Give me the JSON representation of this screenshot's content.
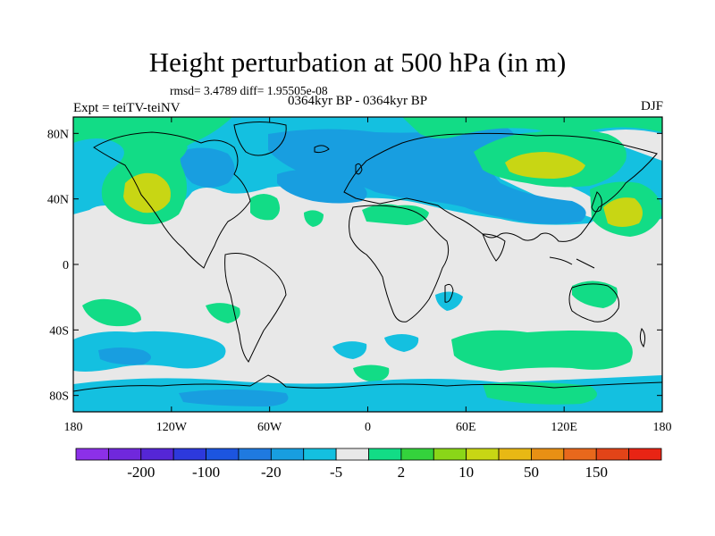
{
  "title": "Height perturbation at 500 hPa (in m)",
  "stats_line": "rmsd= 3.4789 diff= 1.95505e-08",
  "period_line": "0364kyr BP - 0364kyr BP",
  "experiment_line": "Expt = teiTV-teiNV",
  "season": "DJF",
  "map_data": {
    "type": "filled-contour-map",
    "projection": "equirectangular",
    "lon_range": [
      -180,
      180
    ],
    "lat_range": [
      -90,
      90
    ],
    "x_ticks": [
      {
        "lon": -180,
        "label": "180"
      },
      {
        "lon": -120,
        "label": "120W"
      },
      {
        "lon": -60,
        "label": "60W"
      },
      {
        "lon": 0,
        "label": "0"
      },
      {
        "lon": 60,
        "label": "60E"
      },
      {
        "lon": 120,
        "label": "120E"
      },
      {
        "lon": 180,
        "label": "180"
      }
    ],
    "y_ticks": [
      {
        "lat": 80,
        "label": "80N"
      },
      {
        "lat": 40,
        "label": "40N"
      },
      {
        "lat": 0,
        "label": "0"
      },
      {
        "lat": -40,
        "label": "40S"
      },
      {
        "lat": -80,
        "label": "80S"
      }
    ],
    "colorbar": {
      "colors": [
        "#8c30e8",
        "#7028dc",
        "#5526d6",
        "#2d39dc",
        "#1c55e0",
        "#1f7ae0",
        "#189ee0",
        "#14c0e0",
        "#e8e8e8",
        "#12dc86",
        "#34d23c",
        "#8ad618",
        "#c8d614",
        "#e8b814",
        "#e89014",
        "#e8681c",
        "#e24418",
        "#e82414"
      ],
      "labels": [
        "-200",
        "-100",
        "-20",
        "-5",
        "2",
        "10",
        "50",
        "150"
      ]
    },
    "colors": {
      "neutral": "#e8e8e8",
      "light_blue": "#14c0e0",
      "blue": "#189ee0",
      "green": "#12dc86",
      "yellow_green": "#c8d614"
    }
  }
}
